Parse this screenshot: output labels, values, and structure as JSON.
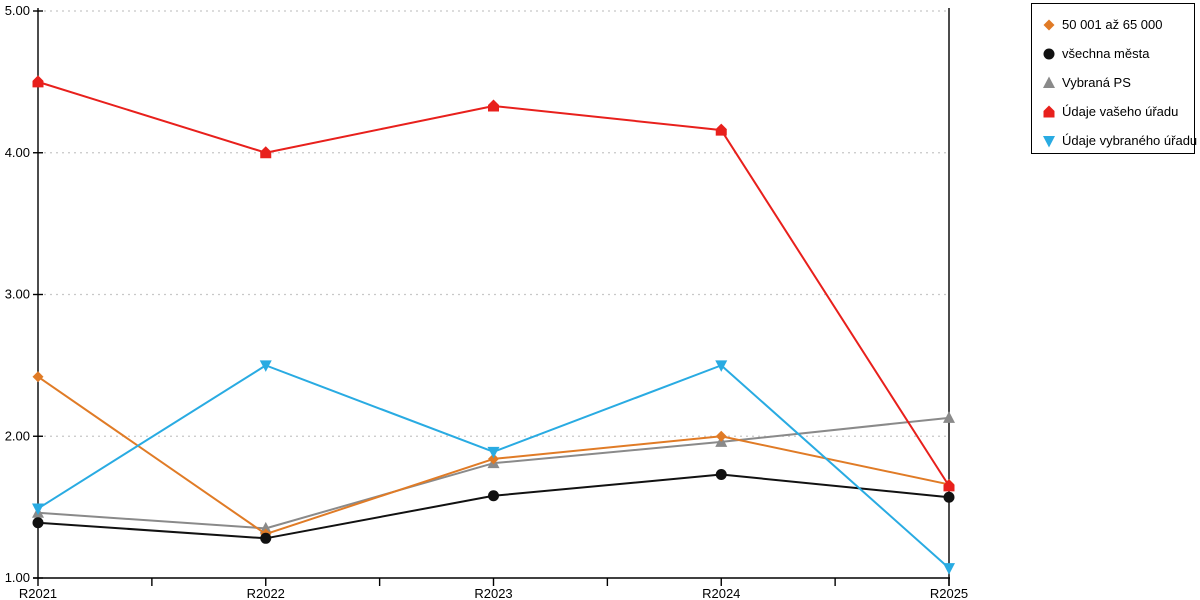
{
  "chart_data": {
    "type": "line",
    "title": "",
    "xlabel": "",
    "ylabel": "",
    "categories": [
      "R2021",
      "R2022",
      "R2023",
      "R2024",
      "R2025"
    ],
    "series": [
      {
        "name": "50 001 až 65 000",
        "marker": "diamond",
        "color": "#E07B26",
        "z": 2,
        "values": [
          2.42,
          1.31,
          1.84,
          2.0,
          1.66
        ]
      },
      {
        "name": "všechna města",
        "marker": "circle",
        "color": "#111111",
        "z": 3,
        "values": [
          1.39,
          1.28,
          1.58,
          1.73,
          1.57
        ]
      },
      {
        "name": "Vybraná PS",
        "marker": "triangle-up",
        "color": "#8A8A8A",
        "z": 1,
        "values": [
          1.46,
          1.35,
          1.81,
          1.96,
          2.13
        ]
      },
      {
        "name": "Údaje vašeho úřadu",
        "marker": "pentagon-up",
        "color": "#E8201C",
        "z": 4,
        "values": [
          4.5,
          4.0,
          4.33,
          4.16,
          1.65
        ]
      },
      {
        "name": "Údaje vybraného úřadu",
        "marker": "triangle-down",
        "color": "#29ABE2",
        "z": 5,
        "values": [
          1.49,
          2.5,
          1.89,
          2.5,
          1.07
        ]
      }
    ],
    "y_ticks": [
      "1.00",
      "2.00",
      "3.00",
      "4.00",
      "5.00"
    ],
    "ylim": [
      1.0,
      5.0
    ],
    "grid": "horizontal-dotted",
    "grid_color": "#C8C8C8",
    "axis_color": "#000000",
    "legend_position": "outside-top-right"
  }
}
